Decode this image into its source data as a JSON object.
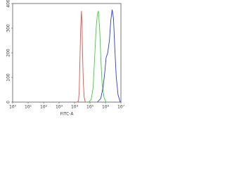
{
  "chart_data": {
    "type": "line",
    "x_label": "FITC-A",
    "xscale": "log",
    "xlim": [
      1,
      10000000
    ],
    "xticks": [
      {
        "value": 1,
        "label": "10⁰"
      },
      {
        "value": 10,
        "label": "10¹"
      },
      {
        "value": 100,
        "label": "10²"
      },
      {
        "value": 1000,
        "label": "10³"
      },
      {
        "value": 10000,
        "label": "10⁴"
      },
      {
        "value": 100000,
        "label": "10⁵"
      },
      {
        "value": 1000000,
        "label": "10⁶"
      },
      {
        "value": 10000000,
        "label": "10⁷"
      }
    ],
    "ylim": [
      0,
      400
    ],
    "yticks": [
      0,
      100,
      200,
      300,
      400
    ],
    "series": [
      {
        "color": "#e8504a",
        "x": [
          15000,
          18000,
          20000,
          22000,
          25000,
          28000,
          30000,
          33000,
          37000,
          42000,
          50000
        ],
        "values": [
          0,
          5,
          40,
          150,
          300,
          370,
          330,
          200,
          80,
          20,
          0
        ]
      },
      {
        "color": "#3ccf3c",
        "x": [
          80000,
          120000,
          160000,
          200000,
          250000,
          300000,
          350000,
          420000,
          500000,
          600000,
          800000,
          1100000
        ],
        "values": [
          0,
          10,
          60,
          180,
          300,
          355,
          370,
          300,
          180,
          80,
          20,
          0
        ]
      },
      {
        "color": "#2a3bd0",
        "x": [
          300000,
          500000,
          700000,
          900000,
          1100000,
          1400000,
          1800000,
          2200000,
          2700000,
          3300000,
          4000000,
          5000000,
          6500000,
          9000000
        ],
        "values": [
          0,
          15,
          60,
          120,
          180,
          200,
          250,
          330,
          375,
          340,
          220,
          100,
          30,
          0
        ]
      }
    ]
  }
}
